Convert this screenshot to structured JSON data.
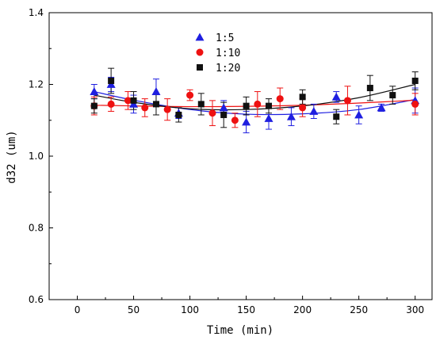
{
  "chart_data": {
    "type": "scatter",
    "title": "",
    "xlabel": "Time (min)",
    "ylabel": "d32 (um)",
    "xlim": [
      -25,
      315
    ],
    "ylim": [
      0.6,
      1.4
    ],
    "xticks": [
      0,
      50,
      100,
      150,
      200,
      250,
      300
    ],
    "yticks": [
      0.6,
      0.8,
      1.0,
      1.2,
      1.4
    ],
    "xtick_labels": [
      "0",
      "50",
      "100",
      "150",
      "200",
      "250",
      "300"
    ],
    "ytick_labels": [
      "0.6",
      "0.8",
      "1.0",
      "1.2",
      "1.4"
    ],
    "grid": false,
    "legend_position": "top-center",
    "series": [
      {
        "name": "1:5",
        "marker": "triangle",
        "color": "#1f1fe0",
        "points": [
          {
            "x": 15,
            "y": 1.18,
            "err": 0.02
          },
          {
            "x": 30,
            "y": 1.2,
            "err": 0.02
          },
          {
            "x": 50,
            "y": 1.145,
            "err": 0.025
          },
          {
            "x": 70,
            "y": 1.18,
            "err": 0.035
          },
          {
            "x": 90,
            "y": 1.12,
            "err": 0.015
          },
          {
            "x": 130,
            "y": 1.135,
            "err": 0.02
          },
          {
            "x": 150,
            "y": 1.095,
            "err": 0.03
          },
          {
            "x": 170,
            "y": 1.105,
            "err": 0.03
          },
          {
            "x": 190,
            "y": 1.11,
            "err": 0.025
          },
          {
            "x": 210,
            "y": 1.125,
            "err": 0.02
          },
          {
            "x": 230,
            "y": 1.165,
            "err": 0.015
          },
          {
            "x": 250,
            "y": 1.115,
            "err": 0.025
          },
          {
            "x": 270,
            "y": 1.135,
            "err": 0.01
          },
          {
            "x": 300,
            "y": 1.155,
            "err": 0.035
          }
        ],
        "fit": [
          [
            15,
            1.18
          ],
          [
            50,
            1.156
          ],
          [
            100,
            1.13
          ],
          [
            150,
            1.117
          ],
          [
            200,
            1.118
          ],
          [
            250,
            1.13
          ],
          [
            300,
            1.158
          ]
        ]
      },
      {
        "name": "1:10",
        "marker": "circle",
        "color": "#ee1111",
        "points": [
          {
            "x": 15,
            "y": 1.14,
            "err": 0.025
          },
          {
            "x": 30,
            "y": 1.145,
            "err": 0.02
          },
          {
            "x": 45,
            "y": 1.155,
            "err": 0.025
          },
          {
            "x": 60,
            "y": 1.135,
            "err": 0.025
          },
          {
            "x": 80,
            "y": 1.13,
            "err": 0.03
          },
          {
            "x": 100,
            "y": 1.17,
            "err": 0.015
          },
          {
            "x": 120,
            "y": 1.12,
            "err": 0.035
          },
          {
            "x": 140,
            "y": 1.1,
            "err": 0.02
          },
          {
            "x": 160,
            "y": 1.145,
            "err": 0.035
          },
          {
            "x": 180,
            "y": 1.16,
            "err": 0.03
          },
          {
            "x": 200,
            "y": 1.135,
            "err": 0.025
          },
          {
            "x": 240,
            "y": 1.155,
            "err": 0.04
          },
          {
            "x": 300,
            "y": 1.145,
            "err": 0.03
          }
        ],
        "fit": [
          [
            15,
            1.142
          ],
          [
            50,
            1.14
          ],
          [
            100,
            1.138
          ],
          [
            150,
            1.139
          ],
          [
            200,
            1.142
          ],
          [
            250,
            1.148
          ],
          [
            300,
            1.156
          ]
        ]
      },
      {
        "name": "1:20",
        "marker": "square",
        "color": "#111111",
        "points": [
          {
            "x": 15,
            "y": 1.14,
            "err": 0.02
          },
          {
            "x": 30,
            "y": 1.21,
            "err": 0.035
          },
          {
            "x": 50,
            "y": 1.155,
            "err": 0.025
          },
          {
            "x": 70,
            "y": 1.145,
            "err": 0.03
          },
          {
            "x": 90,
            "y": 1.115,
            "err": 0.02
          },
          {
            "x": 110,
            "y": 1.145,
            "err": 0.03
          },
          {
            "x": 130,
            "y": 1.115,
            "err": 0.035
          },
          {
            "x": 150,
            "y": 1.14,
            "err": 0.025
          },
          {
            "x": 170,
            "y": 1.14,
            "err": 0.02
          },
          {
            "x": 200,
            "y": 1.165,
            "err": 0.02
          },
          {
            "x": 230,
            "y": 1.11,
            "err": 0.02
          },
          {
            "x": 260,
            "y": 1.19,
            "err": 0.035
          },
          {
            "x": 280,
            "y": 1.17,
            "err": 0.025
          },
          {
            "x": 300,
            "y": 1.21,
            "err": 0.025
          }
        ],
        "fit": [
          [
            15,
            1.17
          ],
          [
            50,
            1.15
          ],
          [
            100,
            1.132
          ],
          [
            150,
            1.13
          ],
          [
            200,
            1.14
          ],
          [
            250,
            1.163
          ],
          [
            300,
            1.2
          ]
        ]
      }
    ]
  }
}
